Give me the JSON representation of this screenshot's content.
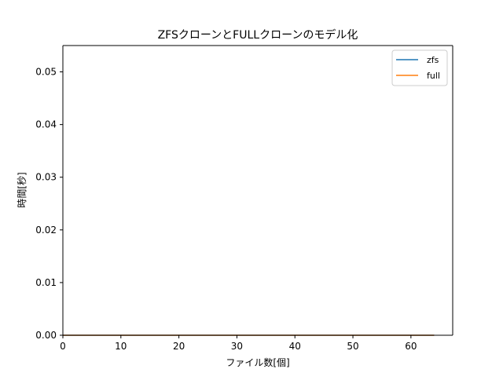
{
  "chart_data": {
    "type": "line",
    "title": "ZFSクローンとFULLクローンのモデル化",
    "xlabel": "ファイル数[個]",
    "ylabel": "時間[秒]",
    "xlim": [
      0,
      67.2
    ],
    "ylim": [
      0,
      0.055
    ],
    "xticks": [
      0,
      10,
      20,
      30,
      40,
      50,
      60
    ],
    "xtick_labels": [
      "0",
      "10",
      "20",
      "30",
      "40",
      "50",
      "60"
    ],
    "yticks": [
      0.0,
      0.01,
      0.02,
      0.03,
      0.04,
      0.05
    ],
    "ytick_labels": [
      "0.00",
      "0.01",
      "0.02",
      "0.03",
      "0.04",
      "0.05"
    ],
    "legend_position": "upper right",
    "grid": false,
    "series": [
      {
        "name": "zfs",
        "color": "#1f77b4",
        "x": [
          0,
          64
        ],
        "y": [
          0,
          0
        ]
      },
      {
        "name": "full",
        "color": "#ff7f0e",
        "x": [
          0,
          64
        ],
        "y": [
          0,
          0
        ]
      }
    ]
  }
}
